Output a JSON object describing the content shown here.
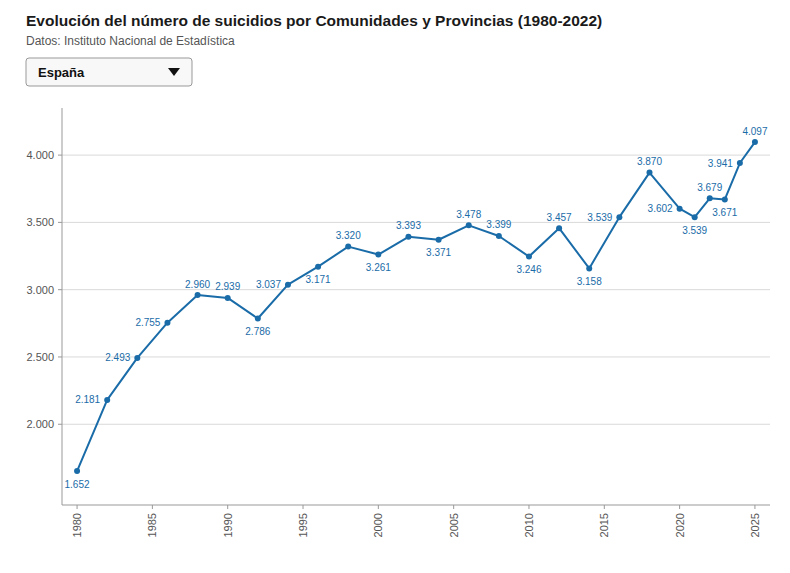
{
  "chart_data": {
    "type": "line",
    "title": "Evolución del número de suicidios por Comunidades y Provincias (1980-2022)",
    "subtitle": "Datos: Instituto Nacional de Estadística",
    "annotations": [
      "España"
    ],
    "color": "#1a6ca8",
    "grid": true,
    "data_labels": true,
    "xlim": [
      1979,
      2026
    ],
    "ylim": [
      1400,
      4350
    ],
    "yticks": [
      {
        "value": 2000,
        "label": "2.000"
      },
      {
        "value": 2500,
        "label": "2.500"
      },
      {
        "value": 3000,
        "label": "3.000"
      },
      {
        "value": 3500,
        "label": "3.500"
      },
      {
        "value": 4000,
        "label": "4.000"
      }
    ],
    "xticks": [
      1980,
      1985,
      1990,
      1995,
      2000,
      2005,
      2010,
      2015,
      2020,
      2025
    ],
    "x": [
      1980,
      1982,
      1984,
      1986,
      1988,
      1990,
      1992,
      1994,
      1996,
      1998,
      2000,
      2002,
      2004,
      2006,
      2008,
      2010,
      2012,
      2014,
      2016,
      2018,
      2020,
      2021,
      2022,
      2023,
      2024,
      2025
    ],
    "values": [
      1652,
      2181,
      2493,
      2755,
      2960,
      2939,
      2786,
      3037,
      3171,
      3320,
      3261,
      3393,
      3371,
      3478,
      3399,
      3246,
      3457,
      3158,
      3539,
      3870,
      3602,
      3539,
      3679,
      3671,
      3941,
      4097
    ],
    "value_labels": [
      "1.652",
      "2.181",
      "2.493",
      "2.755",
      "2.960",
      "2.939",
      "2.786",
      "3.037",
      "3.171",
      "3.320",
      "3.261",
      "3.393",
      "3.371",
      "3.478",
      "3.399",
      "3.246",
      "3.457",
      "3.158",
      "3.539",
      "3.870",
      "3.602",
      "3.539",
      "3.679",
      "3.671",
      "3.941",
      "4.097"
    ]
  }
}
